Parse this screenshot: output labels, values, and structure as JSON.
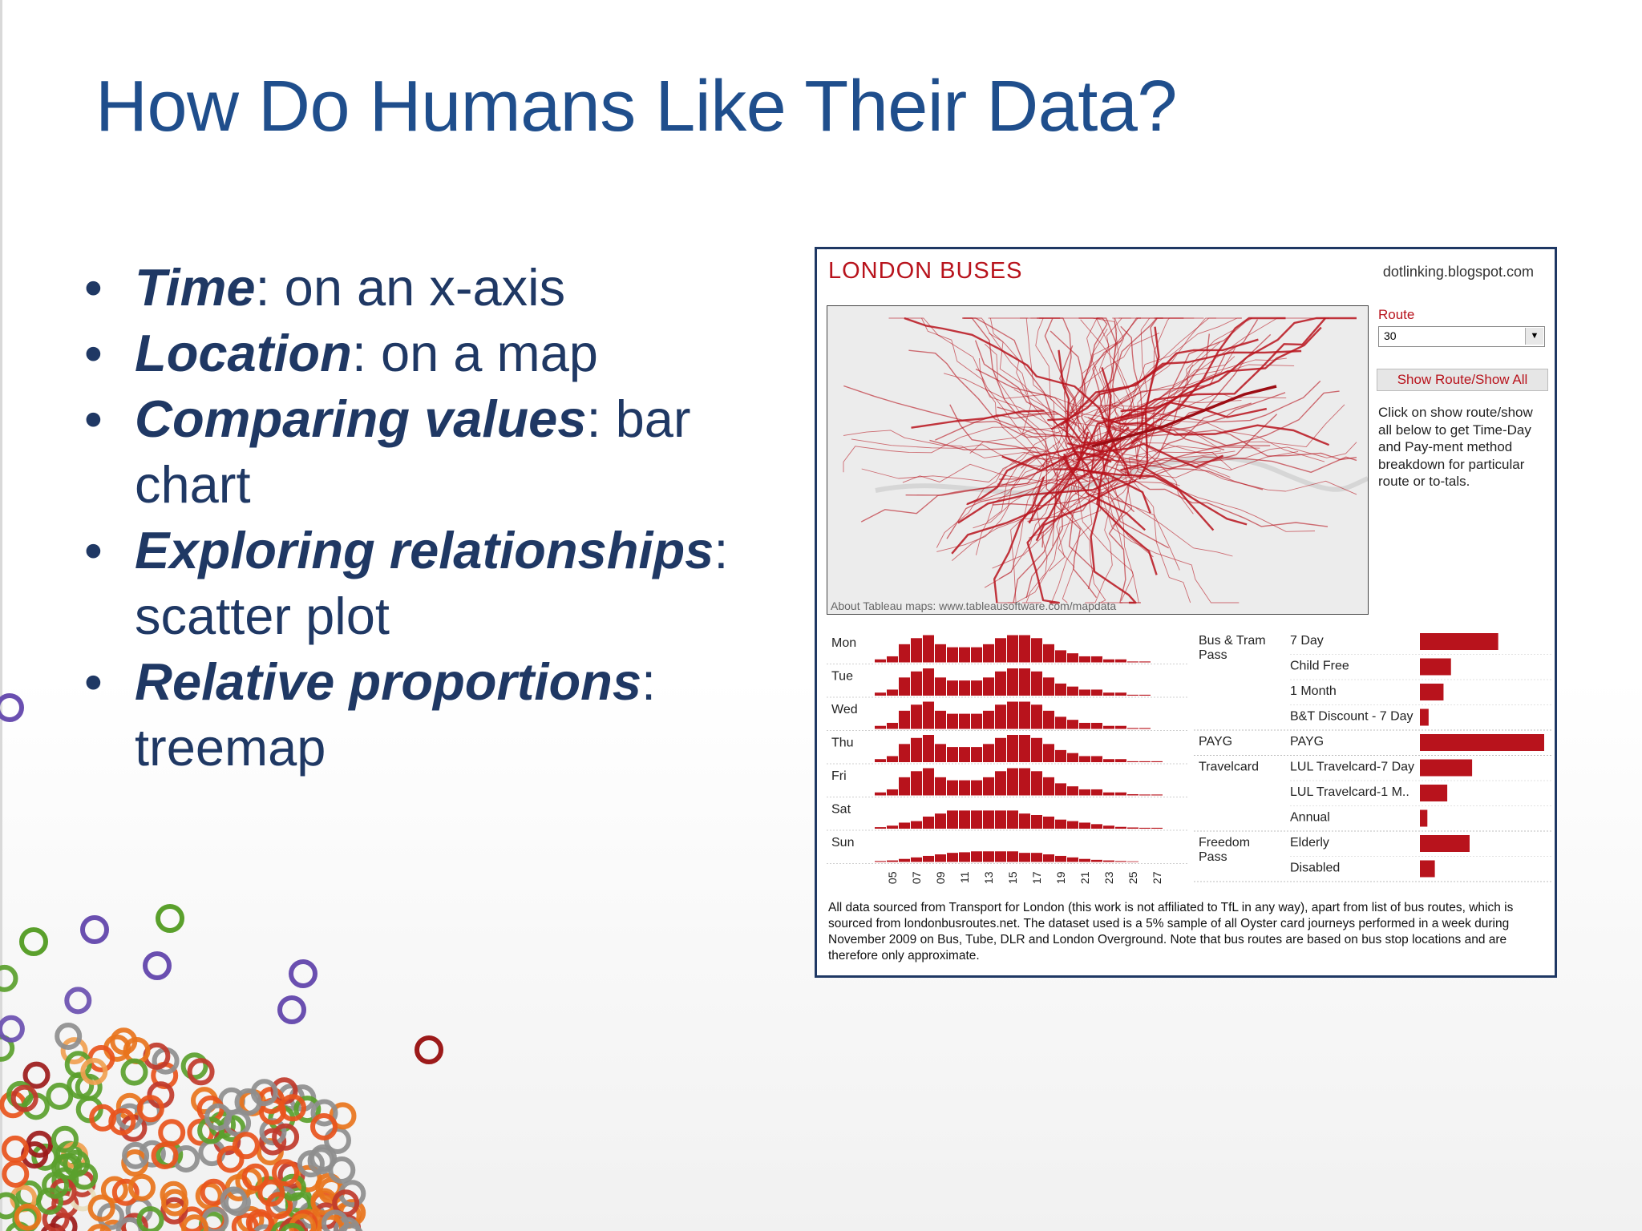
{
  "slide": {
    "title": "How Do Humans Like Their Data?",
    "bullets": [
      {
        "bold": "Time",
        "rest": ": on an x-axis"
      },
      {
        "bold": "Location",
        "rest": ": on a map"
      },
      {
        "bold": "Comparing values",
        "rest": ": bar chart"
      },
      {
        "bold": "Exploring relationships",
        "rest": ": scatter plot"
      },
      {
        "bold": "Relative proportions",
        "rest": ": treemap"
      }
    ],
    "bullet_glyph": "•"
  },
  "dashboard": {
    "title": "LONDON BUSES",
    "source": "dotlinking.blogspot.com",
    "map_credit": "About Tableau maps: www.tableausoftware.com/mapdata",
    "route_label": "Route",
    "route_value": "30",
    "route_dropdown_icon": "chevron-down-icon",
    "show_button_label": "Show Route/Show All",
    "instructions": "Click on show route/show all below to get Time-Day and Pay-ment method breakdown for particular route or to-tals.",
    "footnote": "All data sourced from Transport for London (this work is not affiliated to TfL in any way), apart from list of bus routes, which is sourced from londonbusroutes.net. The dataset used is a 5% sample of all Oyster card journeys performed in a week during November 2009 on Bus, Tube, DLR and London Overground. Note that bus routes are based on bus stop locations and are therefore only approximate.",
    "accent_color": "#b8131c",
    "title_color": "#1f4e8c"
  },
  "chart_data": [
    {
      "type": "bar",
      "title": "",
      "xlabel": "",
      "ylabel": "",
      "x_tick_labels": [
        "05",
        "07",
        "09",
        "11",
        "13",
        "15",
        "17",
        "19",
        "21",
        "23",
        "25",
        "27"
      ],
      "hours": [
        4,
        5,
        6,
        7,
        8,
        9,
        10,
        11,
        12,
        13,
        14,
        15,
        16,
        17,
        18,
        19,
        20,
        21,
        22,
        23,
        24,
        25,
        26,
        27
      ],
      "series": [
        {
          "name": "Mon",
          "values": [
            1,
            2,
            6,
            8,
            9,
            6,
            5,
            5,
            5,
            6,
            8,
            9,
            9,
            8,
            6,
            4,
            3,
            2,
            2,
            1,
            1,
            0.3,
            0.3,
            0
          ]
        },
        {
          "name": "Tue",
          "values": [
            1,
            2,
            6,
            8,
            9,
            6,
            5,
            5,
            5,
            6,
            8,
            9,
            9,
            8,
            6,
            4,
            3,
            2,
            2,
            1,
            1,
            0.3,
            0.3,
            0
          ]
        },
        {
          "name": "Wed",
          "values": [
            1,
            2,
            6,
            8,
            9,
            6,
            5,
            5,
            5,
            6,
            8,
            9,
            9,
            8,
            6,
            4,
            3,
            2,
            2,
            1,
            1,
            0.3,
            0.3,
            0
          ]
        },
        {
          "name": "Thu",
          "values": [
            1,
            2,
            6,
            8,
            9,
            6,
            5,
            5,
            5,
            6,
            8,
            9,
            9,
            8,
            6,
            4,
            3,
            2,
            2,
            1,
            1,
            0.3,
            0.3,
            0.3
          ]
        },
        {
          "name": "Fri",
          "values": [
            1,
            2,
            6,
            8,
            9,
            6,
            5,
            5,
            5,
            6,
            8,
            9,
            9,
            8,
            6,
            4,
            3,
            2,
            2,
            1,
            1,
            0.4,
            0.3,
            0.3
          ]
        },
        {
          "name": "Sat",
          "values": [
            0.5,
            1,
            2,
            2.5,
            4,
            5,
            6,
            6,
            6,
            6,
            6,
            6,
            5,
            4.5,
            4,
            3,
            2.5,
            2,
            1.5,
            1,
            0.6,
            0.4,
            0.3,
            0.3
          ]
        },
        {
          "name": "Sun",
          "values": [
            0.3,
            0.5,
            1,
            1.5,
            2,
            2.5,
            3,
            3.2,
            3.5,
            3.5,
            3.5,
            3.5,
            3,
            3,
            2.5,
            2,
            1.5,
            1,
            0.7,
            0.5,
            0.3,
            0.2,
            0,
            0
          ]
        }
      ]
    },
    {
      "type": "bar",
      "orientation": "horizontal",
      "title": "",
      "groups": [
        {
          "name": "Bus & Tram Pass",
          "items": [
            {
              "label": "7 Day",
              "value": 63
            },
            {
              "label": "Child Free",
              "value": 25
            },
            {
              "label": "1 Month",
              "value": 19
            },
            {
              "label": "B&T Discount - 7 Day",
              "value": 7
            }
          ]
        },
        {
          "name": "PAYG",
          "items": [
            {
              "label": "PAYG",
              "value": 100
            }
          ]
        },
        {
          "name": "Travelcard",
          "items": [
            {
              "label": "LUL Travelcard-7 Day",
              "value": 42
            },
            {
              "label": "LUL Travelcard-1 M..",
              "value": 22
            },
            {
              "label": "Annual",
              "value": 6
            }
          ]
        },
        {
          "name": "Freedom Pass",
          "items": [
            {
              "label": "Elderly",
              "value": 40
            },
            {
              "label": "Disabled",
              "value": 12
            }
          ]
        }
      ]
    }
  ]
}
